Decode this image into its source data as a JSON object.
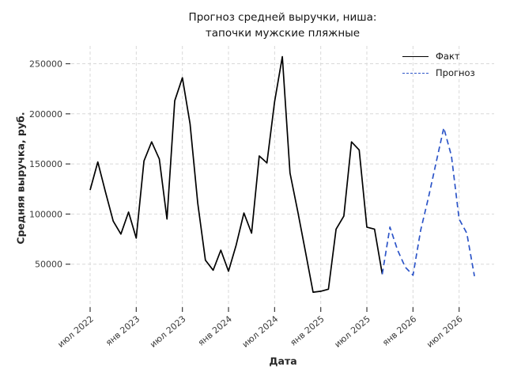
{
  "chart_data": {
    "type": "line",
    "title": "Прогноз средней выручки, ниша:\nтапочки мужские пляжные",
    "xlabel": "Дата",
    "ylabel": "Средняя выручка, руб.",
    "grid": true,
    "legend_position": "top-right",
    "month0": "2022-07",
    "x_tick_labels": [
      "июл 2022",
      "янв 2023",
      "июл 2023",
      "янв 2024",
      "июл 2024",
      "янв 2025",
      "июл 2025",
      "янв 2026",
      "июл 2026"
    ],
    "x_tick_month_indices": [
      0,
      6,
      12,
      18,
      24,
      30,
      36,
      42,
      48
    ],
    "y_ticks": [
      50000,
      100000,
      150000,
      200000,
      250000
    ],
    "y_tick_labels": [
      "50000",
      "100000",
      "150000",
      "200000",
      "250000"
    ],
    "ylim": [
      0,
      265000
    ],
    "colors": {
      "fact": "#000000",
      "forecast": "#2d55c8",
      "grid": "#d9d9d9",
      "tick_text": "#3a3a3a"
    },
    "series": [
      {
        "name": "Факт",
        "style": "solid",
        "color": "#000000",
        "start_index": 0,
        "months": [
          "2022-07",
          "2022-08",
          "2022-09",
          "2022-10",
          "2022-11",
          "2022-12",
          "2023-01",
          "2023-02",
          "2023-03",
          "2023-04",
          "2023-05",
          "2023-06",
          "2023-07",
          "2023-08",
          "2023-09",
          "2023-10",
          "2023-11",
          "2023-12",
          "2024-01",
          "2024-02",
          "2024-03",
          "2024-04",
          "2024-05",
          "2024-06",
          "2024-07",
          "2024-08",
          "2024-09",
          "2024-10",
          "2024-11",
          "2024-12",
          "2025-01",
          "2025-02",
          "2025-03",
          "2025-04",
          "2025-05",
          "2025-06",
          "2025-07",
          "2025-08",
          "2025-09"
        ],
        "values": [
          124000,
          152000,
          122000,
          93000,
          80000,
          102000,
          76000,
          153000,
          172000,
          155000,
          95000,
          213000,
          236000,
          190000,
          111000,
          54000,
          44000,
          64000,
          43000,
          69000,
          101000,
          81000,
          158000,
          151000,
          212000,
          257000,
          141000,
          103000,
          63000,
          22000,
          23000,
          25000,
          85000,
          98000,
          172000,
          164000,
          87000,
          85000,
          40000
        ]
      },
      {
        "name": "Прогноз",
        "style": "dashed",
        "color": "#2d55c8",
        "start_index": 38,
        "months": [
          "2025-09",
          "2025-10",
          "2025-11",
          "2025-12",
          "2026-01",
          "2026-02",
          "2026-03",
          "2026-04",
          "2026-05",
          "2026-06",
          "2026-07",
          "2026-08",
          "2026-09"
        ],
        "values": [
          40000,
          87000,
          64000,
          47000,
          39000,
          84000,
          116000,
          151000,
          186000,
          158000,
          95000,
          81000,
          38000
        ]
      }
    ]
  }
}
